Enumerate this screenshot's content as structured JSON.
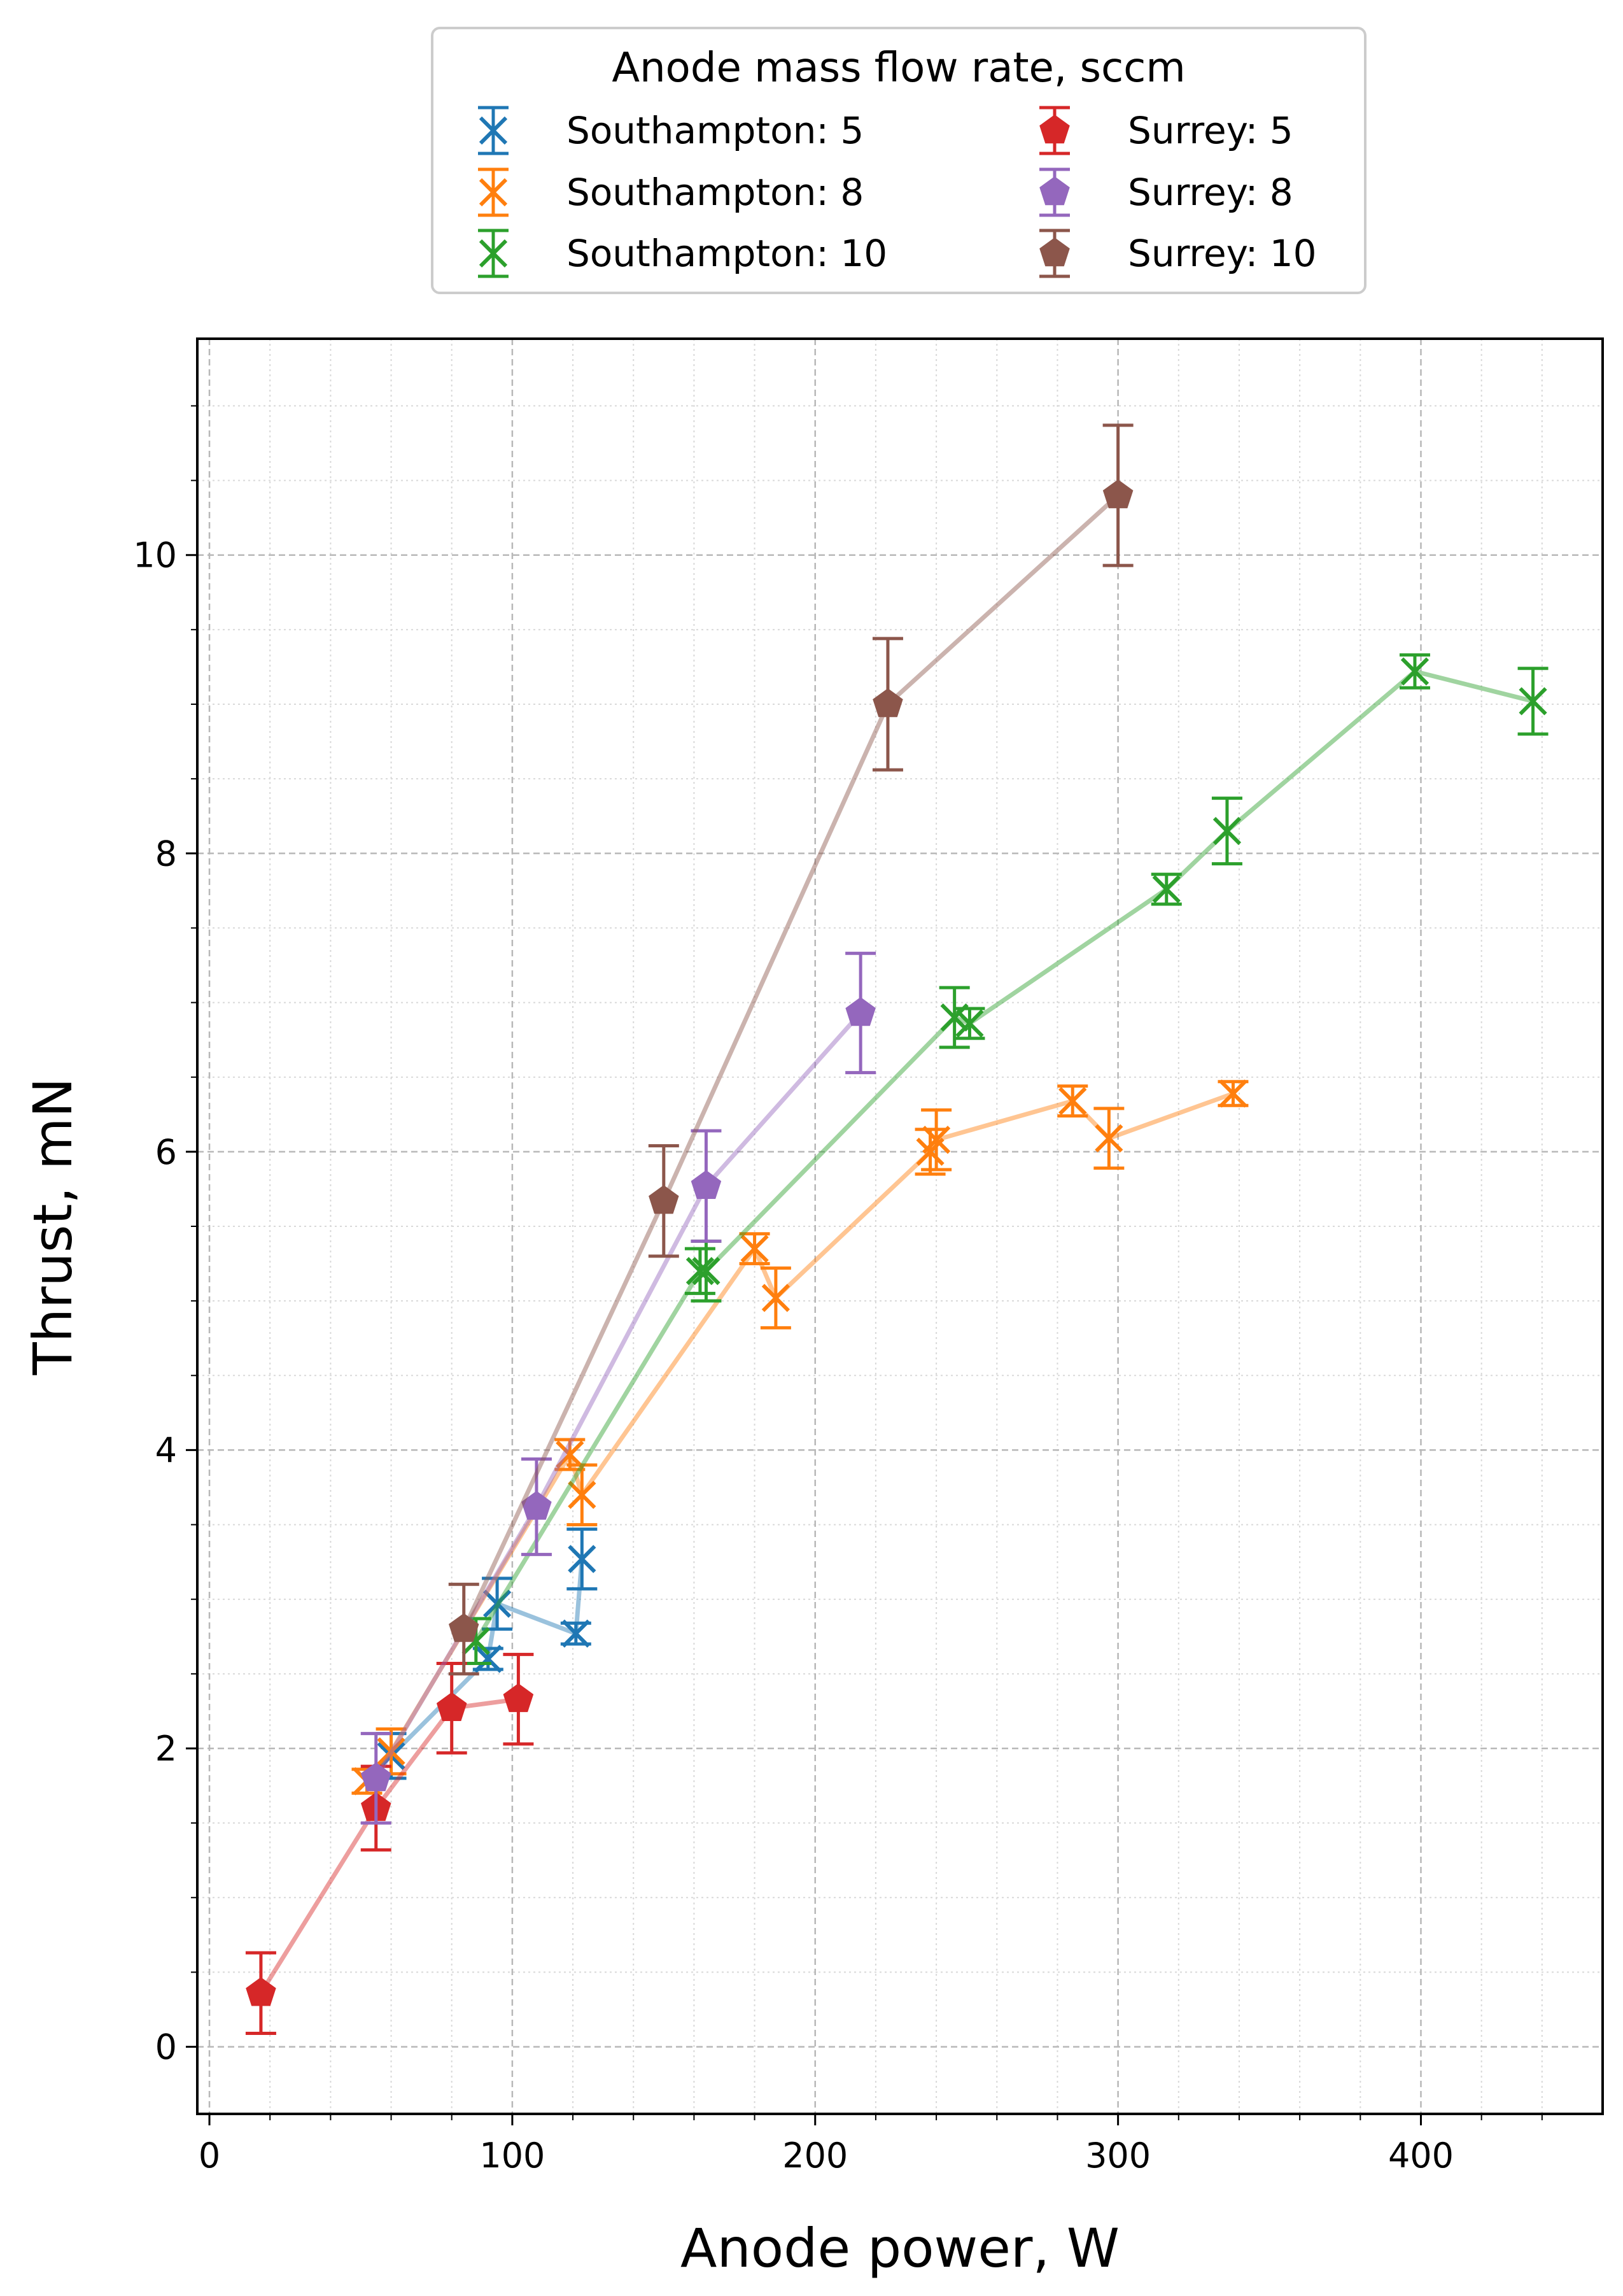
{
  "chart_data": {
    "type": "scatter",
    "title": "",
    "xlabel": "Anode power, W",
    "ylabel": "Thrust, mN",
    "xlim": [
      -4,
      460
    ],
    "ylim": [
      -0.45,
      11.45
    ],
    "xticks": [
      0,
      100,
      200,
      300,
      400
    ],
    "yticks": [
      0,
      2,
      4,
      6,
      8,
      10
    ],
    "grid": "major dashed and minor dotted",
    "legend": {
      "title": "Anode mass flow rate, sccm",
      "placement": "top-center, above plot",
      "columns": 2
    },
    "series": [
      {
        "name": "Southampton: 5",
        "color": "#1f77b4",
        "marker": "x",
        "points": [
          {
            "x": 60,
            "y": 1.95,
            "err": 0.15
          },
          {
            "x": 92,
            "y": 2.6,
            "err": 0.07
          },
          {
            "x": 95,
            "y": 2.97,
            "err": 0.17
          },
          {
            "x": 121,
            "y": 2.77,
            "err": 0.07
          },
          {
            "x": 123,
            "y": 3.27,
            "err": 0.2
          }
        ]
      },
      {
        "name": "Southampton: 8",
        "color": "#ff7f0e",
        "marker": "x",
        "points": [
          {
            "x": 52,
            "y": 1.78,
            "err": 0.08
          },
          {
            "x": 60,
            "y": 1.98,
            "err": 0.15
          },
          {
            "x": 119,
            "y": 3.97,
            "err": 0.1
          },
          {
            "x": 123,
            "y": 3.7,
            "err": 0.2
          },
          {
            "x": 180,
            "y": 5.35,
            "err": 0.1
          },
          {
            "x": 187,
            "y": 5.02,
            "err": 0.2
          },
          {
            "x": 238,
            "y": 6.0,
            "err": 0.15
          },
          {
            "x": 240,
            "y": 6.08,
            "err": 0.2
          },
          {
            "x": 285,
            "y": 6.34,
            "err": 0.1
          },
          {
            "x": 297,
            "y": 6.09,
            "err": 0.2
          },
          {
            "x": 338,
            "y": 6.39,
            "err": 0.08
          }
        ]
      },
      {
        "name": "Southampton: 10",
        "color": "#2ca02c",
        "marker": "x",
        "points": [
          {
            "x": 88,
            "y": 2.72,
            "err": 0.15
          },
          {
            "x": 162,
            "y": 5.2,
            "err": 0.15
          },
          {
            "x": 164,
            "y": 5.2,
            "err": 0.2
          },
          {
            "x": 246,
            "y": 6.9,
            "err": 0.2
          },
          {
            "x": 251,
            "y": 6.86,
            "err": 0.1
          },
          {
            "x": 316,
            "y": 7.76,
            "err": 0.1
          },
          {
            "x": 336,
            "y": 8.15,
            "err": 0.22
          },
          {
            "x": 398,
            "y": 9.22,
            "err": 0.11
          },
          {
            "x": 437,
            "y": 9.02,
            "err": 0.22
          }
        ]
      },
      {
        "name": "Surrey: 5",
        "color": "#d62728",
        "marker": "pentagon",
        "points": [
          {
            "x": 17,
            "y": 0.36,
            "err": 0.27
          },
          {
            "x": 55,
            "y": 1.6,
            "err": 0.28
          },
          {
            "x": 80,
            "y": 2.27,
            "err": 0.3
          },
          {
            "x": 102,
            "y": 2.33,
            "err": 0.3
          }
        ]
      },
      {
        "name": "Surrey: 8",
        "color": "#9467bd",
        "marker": "pentagon",
        "points": [
          {
            "x": 55,
            "y": 1.8,
            "err": 0.3
          },
          {
            "x": 108,
            "y": 3.62,
            "err": 0.32
          },
          {
            "x": 164,
            "y": 5.77,
            "err": 0.37
          },
          {
            "x": 215,
            "y": 6.93,
            "err": 0.4
          }
        ]
      },
      {
        "name": "Surrey: 10",
        "color": "#8c564b",
        "marker": "pentagon",
        "points": [
          {
            "x": 84,
            "y": 2.8,
            "err": 0.3
          },
          {
            "x": 150,
            "y": 5.67,
            "err": 0.37
          },
          {
            "x": 224,
            "y": 9.0,
            "err": 0.44
          },
          {
            "x": 300,
            "y": 10.4,
            "err": 0.47
          }
        ]
      }
    ]
  }
}
